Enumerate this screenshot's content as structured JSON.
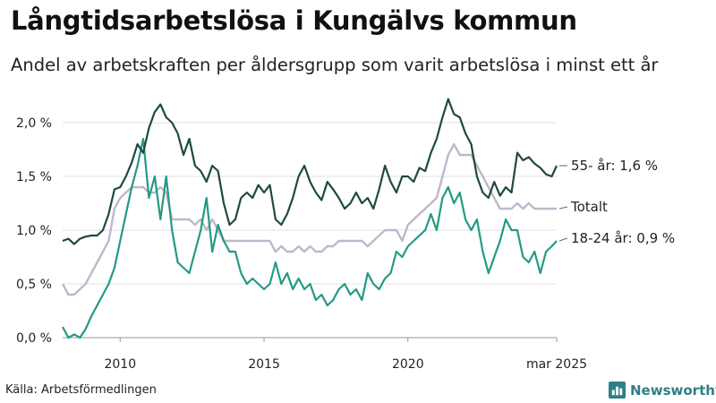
{
  "title": "Långtidsarbetslösa i Kungälvs kommun",
  "subtitle": "Andel av arbetskraften per åldersgrupp som varit arbetslösa i minst ett år",
  "source": "Källa: Arbetsförmedlingen",
  "brand": "Newsworthy",
  "colors": {
    "older": "#1f4a3e",
    "total": "#bdb8cb",
    "young": "#229a87",
    "grid": "#e2e2e2",
    "axis": "#999999",
    "brand": "#2f7f86"
  },
  "chart_data": {
    "type": "line",
    "ylim": [
      0,
      2.25
    ],
    "xlim": [
      2008.0,
      2025.2
    ],
    "yticks": [
      0.0,
      0.5,
      1.0,
      1.5,
      2.0
    ],
    "ytick_labels": [
      "0,0 %",
      "0,5 %",
      "1,0 %",
      "1,5 %",
      "2,0 %"
    ],
    "xticks": [
      2010,
      2015,
      2020,
      2025.17
    ],
    "xtick_labels": [
      "2010",
      "2015",
      "2020",
      "mar 2025"
    ],
    "grid": true,
    "series": [
      {
        "name": "55- år",
        "color_key": "older",
        "end_label": "55- år: 1,6 %",
        "points": [
          [
            2008.0,
            0.9
          ],
          [
            2008.2,
            0.92
          ],
          [
            2008.4,
            0.87
          ],
          [
            2008.6,
            0.92
          ],
          [
            2008.8,
            0.94
          ],
          [
            2009.0,
            0.95
          ],
          [
            2009.2,
            0.95
          ],
          [
            2009.4,
            1.0
          ],
          [
            2009.6,
            1.15
          ],
          [
            2009.8,
            1.38
          ],
          [
            2010.0,
            1.4
          ],
          [
            2010.2,
            1.5
          ],
          [
            2010.4,
            1.63
          ],
          [
            2010.6,
            1.8
          ],
          [
            2010.8,
            1.72
          ],
          [
            2011.0,
            1.95
          ],
          [
            2011.2,
            2.1
          ],
          [
            2011.4,
            2.17
          ],
          [
            2011.6,
            2.05
          ],
          [
            2011.8,
            2.0
          ],
          [
            2012.0,
            1.9
          ],
          [
            2012.2,
            1.7
          ],
          [
            2012.4,
            1.85
          ],
          [
            2012.6,
            1.6
          ],
          [
            2012.8,
            1.55
          ],
          [
            2013.0,
            1.45
          ],
          [
            2013.2,
            1.6
          ],
          [
            2013.4,
            1.55
          ],
          [
            2013.6,
            1.25
          ],
          [
            2013.8,
            1.05
          ],
          [
            2014.0,
            1.1
          ],
          [
            2014.2,
            1.3
          ],
          [
            2014.4,
            1.35
          ],
          [
            2014.6,
            1.3
          ],
          [
            2014.8,
            1.42
          ],
          [
            2015.0,
            1.35
          ],
          [
            2015.2,
            1.42
          ],
          [
            2015.4,
            1.1
          ],
          [
            2015.6,
            1.05
          ],
          [
            2015.8,
            1.15
          ],
          [
            2016.0,
            1.3
          ],
          [
            2016.2,
            1.5
          ],
          [
            2016.4,
            1.6
          ],
          [
            2016.6,
            1.45
          ],
          [
            2016.8,
            1.35
          ],
          [
            2017.0,
            1.28
          ],
          [
            2017.2,
            1.45
          ],
          [
            2017.4,
            1.38
          ],
          [
            2017.6,
            1.3
          ],
          [
            2017.8,
            1.2
          ],
          [
            2018.0,
            1.25
          ],
          [
            2018.2,
            1.35
          ],
          [
            2018.4,
            1.25
          ],
          [
            2018.6,
            1.3
          ],
          [
            2018.8,
            1.2
          ],
          [
            2019.0,
            1.38
          ],
          [
            2019.2,
            1.6
          ],
          [
            2019.4,
            1.45
          ],
          [
            2019.6,
            1.35
          ],
          [
            2019.8,
            1.5
          ],
          [
            2020.0,
            1.5
          ],
          [
            2020.2,
            1.45
          ],
          [
            2020.4,
            1.58
          ],
          [
            2020.6,
            1.55
          ],
          [
            2020.8,
            1.72
          ],
          [
            2021.0,
            1.85
          ],
          [
            2021.2,
            2.05
          ],
          [
            2021.4,
            2.22
          ],
          [
            2021.6,
            2.08
          ],
          [
            2021.8,
            2.05
          ],
          [
            2022.0,
            1.9
          ],
          [
            2022.2,
            1.8
          ],
          [
            2022.4,
            1.5
          ],
          [
            2022.6,
            1.35
          ],
          [
            2022.8,
            1.3
          ],
          [
            2023.0,
            1.45
          ],
          [
            2023.2,
            1.32
          ],
          [
            2023.4,
            1.4
          ],
          [
            2023.6,
            1.35
          ],
          [
            2023.8,
            1.72
          ],
          [
            2024.0,
            1.65
          ],
          [
            2024.2,
            1.68
          ],
          [
            2024.4,
            1.62
          ],
          [
            2024.6,
            1.58
          ],
          [
            2024.8,
            1.52
          ],
          [
            2025.0,
            1.5
          ],
          [
            2025.17,
            1.6
          ]
        ]
      },
      {
        "name": "Totalt",
        "color_key": "total",
        "end_label": "Totalt",
        "points": [
          [
            2008.0,
            0.5
          ],
          [
            2008.2,
            0.4
          ],
          [
            2008.4,
            0.4
          ],
          [
            2008.6,
            0.45
          ],
          [
            2008.8,
            0.5
          ],
          [
            2009.0,
            0.6
          ],
          [
            2009.2,
            0.7
          ],
          [
            2009.4,
            0.8
          ],
          [
            2009.6,
            0.9
          ],
          [
            2009.8,
            1.2
          ],
          [
            2010.0,
            1.3
          ],
          [
            2010.2,
            1.35
          ],
          [
            2010.4,
            1.4
          ],
          [
            2010.6,
            1.4
          ],
          [
            2010.8,
            1.4
          ],
          [
            2011.0,
            1.35
          ],
          [
            2011.2,
            1.35
          ],
          [
            2011.4,
            1.4
          ],
          [
            2011.6,
            1.35
          ],
          [
            2011.8,
            1.1
          ],
          [
            2012.0,
            1.1
          ],
          [
            2012.2,
            1.1
          ],
          [
            2012.4,
            1.1
          ],
          [
            2012.6,
            1.05
          ],
          [
            2012.8,
            1.1
          ],
          [
            2013.0,
            1.0
          ],
          [
            2013.2,
            1.1
          ],
          [
            2013.4,
            1.0
          ],
          [
            2013.6,
            0.9
          ],
          [
            2013.8,
            0.9
          ],
          [
            2014.0,
            0.9
          ],
          [
            2014.2,
            0.9
          ],
          [
            2014.4,
            0.9
          ],
          [
            2014.6,
            0.9
          ],
          [
            2014.8,
            0.9
          ],
          [
            2015.0,
            0.9
          ],
          [
            2015.2,
            0.9
          ],
          [
            2015.4,
            0.8
          ],
          [
            2015.6,
            0.85
          ],
          [
            2015.8,
            0.8
          ],
          [
            2016.0,
            0.8
          ],
          [
            2016.2,
            0.85
          ],
          [
            2016.4,
            0.8
          ],
          [
            2016.6,
            0.85
          ],
          [
            2016.8,
            0.8
          ],
          [
            2017.0,
            0.8
          ],
          [
            2017.2,
            0.85
          ],
          [
            2017.4,
            0.85
          ],
          [
            2017.6,
            0.9
          ],
          [
            2017.8,
            0.9
          ],
          [
            2018.0,
            0.9
          ],
          [
            2018.2,
            0.9
          ],
          [
            2018.4,
            0.9
          ],
          [
            2018.6,
            0.85
          ],
          [
            2018.8,
            0.9
          ],
          [
            2019.0,
            0.95
          ],
          [
            2019.2,
            1.0
          ],
          [
            2019.4,
            1.0
          ],
          [
            2019.6,
            1.0
          ],
          [
            2019.8,
            0.9
          ],
          [
            2020.0,
            1.05
          ],
          [
            2020.2,
            1.1
          ],
          [
            2020.4,
            1.15
          ],
          [
            2020.6,
            1.2
          ],
          [
            2020.8,
            1.25
          ],
          [
            2021.0,
            1.3
          ],
          [
            2021.2,
            1.5
          ],
          [
            2021.4,
            1.7
          ],
          [
            2021.6,
            1.8
          ],
          [
            2021.8,
            1.7
          ],
          [
            2022.0,
            1.7
          ],
          [
            2022.2,
            1.7
          ],
          [
            2022.4,
            1.6
          ],
          [
            2022.6,
            1.5
          ],
          [
            2022.8,
            1.4
          ],
          [
            2023.0,
            1.3
          ],
          [
            2023.2,
            1.2
          ],
          [
            2023.4,
            1.2
          ],
          [
            2023.6,
            1.2
          ],
          [
            2023.8,
            1.25
          ],
          [
            2024.0,
            1.2
          ],
          [
            2024.2,
            1.25
          ],
          [
            2024.4,
            1.2
          ],
          [
            2024.6,
            1.2
          ],
          [
            2024.8,
            1.2
          ],
          [
            2025.0,
            1.2
          ],
          [
            2025.17,
            1.2
          ]
        ]
      },
      {
        "name": "18-24 år",
        "color_key": "young",
        "end_label": "18-24 år: 0,9 %",
        "points": [
          [
            2008.0,
            0.1
          ],
          [
            2008.2,
            0.0
          ],
          [
            2008.4,
            0.03
          ],
          [
            2008.6,
            0.0
          ],
          [
            2008.8,
            0.08
          ],
          [
            2009.0,
            0.2
          ],
          [
            2009.2,
            0.3
          ],
          [
            2009.4,
            0.4
          ],
          [
            2009.6,
            0.5
          ],
          [
            2009.8,
            0.65
          ],
          [
            2010.0,
            0.9
          ],
          [
            2010.2,
            1.15
          ],
          [
            2010.4,
            1.4
          ],
          [
            2010.6,
            1.6
          ],
          [
            2010.8,
            1.85
          ],
          [
            2011.0,
            1.3
          ],
          [
            2011.2,
            1.5
          ],
          [
            2011.4,
            1.1
          ],
          [
            2011.6,
            1.5
          ],
          [
            2011.8,
            1.0
          ],
          [
            2012.0,
            0.7
          ],
          [
            2012.2,
            0.65
          ],
          [
            2012.4,
            0.6
          ],
          [
            2012.6,
            0.8
          ],
          [
            2012.8,
            1.0
          ],
          [
            2013.0,
            1.3
          ],
          [
            2013.2,
            0.8
          ],
          [
            2013.4,
            1.05
          ],
          [
            2013.6,
            0.9
          ],
          [
            2013.8,
            0.8
          ],
          [
            2014.0,
            0.8
          ],
          [
            2014.2,
            0.6
          ],
          [
            2014.4,
            0.5
          ],
          [
            2014.6,
            0.55
          ],
          [
            2014.8,
            0.5
          ],
          [
            2015.0,
            0.45
          ],
          [
            2015.2,
            0.5
          ],
          [
            2015.4,
            0.7
          ],
          [
            2015.6,
            0.5
          ],
          [
            2015.8,
            0.6
          ],
          [
            2016.0,
            0.45
          ],
          [
            2016.2,
            0.55
          ],
          [
            2016.4,
            0.45
          ],
          [
            2016.6,
            0.5
          ],
          [
            2016.8,
            0.35
          ],
          [
            2017.0,
            0.4
          ],
          [
            2017.2,
            0.3
          ],
          [
            2017.4,
            0.35
          ],
          [
            2017.6,
            0.45
          ],
          [
            2017.8,
            0.5
          ],
          [
            2018.0,
            0.4
          ],
          [
            2018.2,
            0.45
          ],
          [
            2018.4,
            0.35
          ],
          [
            2018.6,
            0.6
          ],
          [
            2018.8,
            0.5
          ],
          [
            2019.0,
            0.45
          ],
          [
            2019.2,
            0.55
          ],
          [
            2019.4,
            0.6
          ],
          [
            2019.6,
            0.8
          ],
          [
            2019.8,
            0.75
          ],
          [
            2020.0,
            0.85
          ],
          [
            2020.2,
            0.9
          ],
          [
            2020.4,
            0.95
          ],
          [
            2020.6,
            1.0
          ],
          [
            2020.8,
            1.15
          ],
          [
            2021.0,
            1.0
          ],
          [
            2021.2,
            1.3
          ],
          [
            2021.4,
            1.4
          ],
          [
            2021.6,
            1.25
          ],
          [
            2021.8,
            1.35
          ],
          [
            2022.0,
            1.1
          ],
          [
            2022.2,
            1.0
          ],
          [
            2022.4,
            1.1
          ],
          [
            2022.6,
            0.8
          ],
          [
            2022.8,
            0.6
          ],
          [
            2023.0,
            0.75
          ],
          [
            2023.2,
            0.9
          ],
          [
            2023.4,
            1.1
          ],
          [
            2023.6,
            1.0
          ],
          [
            2023.8,
            1.0
          ],
          [
            2024.0,
            0.75
          ],
          [
            2024.2,
            0.7
          ],
          [
            2024.4,
            0.8
          ],
          [
            2024.6,
            0.6
          ],
          [
            2024.8,
            0.8
          ],
          [
            2025.0,
            0.85
          ],
          [
            2025.17,
            0.9
          ]
        ]
      }
    ]
  }
}
